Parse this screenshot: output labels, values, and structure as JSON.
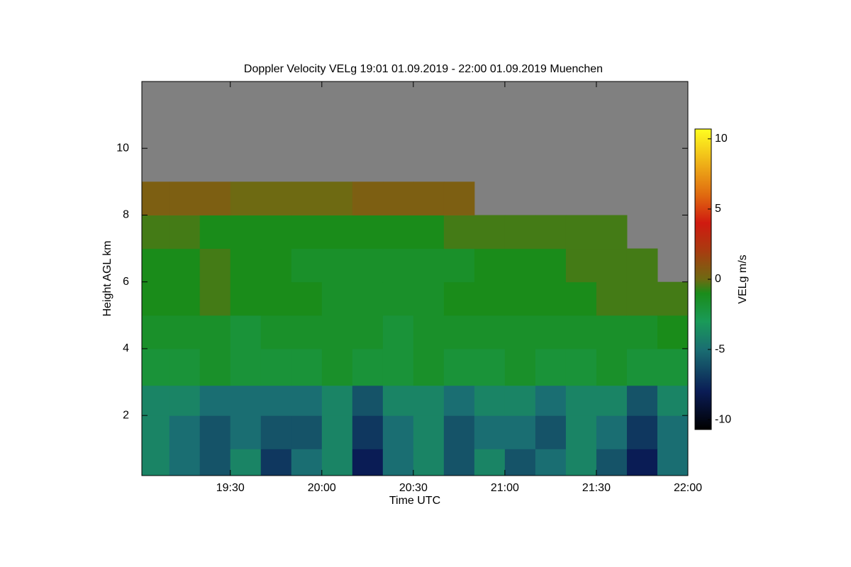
{
  "chart_data": {
    "type": "heatmap",
    "title": "Doppler Velocity VELg   19:01 01.09.2019 - 22:00 01.09.2019 Muenchen",
    "x_label": "Time UTC",
    "y_label": "Height AGL km",
    "colorbar_label": "VELg m/s",
    "x_edges": [
      1141,
      1150,
      1160,
      1170,
      1180,
      1190,
      1200,
      1210,
      1220,
      1230,
      1240,
      1250,
      1260,
      1270,
      1280,
      1290,
      1300,
      1310,
      1320
    ],
    "y_edges": [
      0.2,
      1,
      2,
      2.9,
      4,
      5,
      6,
      7,
      8,
      9,
      10,
      11,
      12
    ],
    "values": [
      [
        -4,
        -5,
        -6,
        -4,
        -7,
        -5,
        -4,
        -8,
        -5,
        -4,
        -6,
        -4,
        -6,
        -5,
        -4,
        -6,
        -8,
        -5
      ],
      [
        -4,
        -5,
        -6,
        -5,
        -6,
        -6,
        -4,
        -7,
        -5,
        -4,
        -6,
        -5,
        -5,
        -6,
        -4,
        -5,
        -7,
        -5
      ],
      [
        -4,
        -4,
        -5,
        -5,
        -5,
        -5,
        -4,
        -6,
        -4,
        -4,
        -5,
        -4,
        -4,
        -5,
        -4,
        -4,
        -6,
        -4
      ],
      [
        -2,
        -2,
        -1.5,
        -2,
        -2,
        -2,
        -1.5,
        -2,
        -2,
        -1.5,
        -2,
        -2,
        -1.5,
        -2,
        -2,
        -1.5,
        -2,
        -2
      ],
      [
        -1.5,
        -1.5,
        -1.5,
        -2,
        -1.5,
        -1.5,
        -1.5,
        -1.5,
        -2,
        -1.5,
        -1.5,
        -1.5,
        -1.5,
        -1.5,
        -1.5,
        -1.5,
        -1.5,
        -1
      ],
      [
        -1,
        -1,
        -0.5,
        -1,
        -1,
        -1,
        -1.5,
        -1.5,
        -1.5,
        -1.5,
        -1,
        -1,
        -1,
        -1,
        -1,
        -0.5,
        -0.5,
        -0.5
      ],
      [
        -1,
        -1,
        -0.5,
        -1,
        -1,
        -1.5,
        -1.5,
        -1.5,
        -1.5,
        -1.5,
        -1.5,
        -1,
        -1,
        -1,
        -0.5,
        -0.5,
        -0.5,
        null
      ],
      [
        -0.5,
        -0.5,
        -1,
        -1,
        -1,
        -1,
        -1,
        -1,
        -1,
        -1,
        -0.5,
        -0.5,
        -0.5,
        -0.5,
        -0.5,
        -0.5,
        null,
        null
      ],
      [
        0.5,
        0.5,
        0.5,
        0,
        0,
        0,
        0,
        0.5,
        0.5,
        0.5,
        0.5,
        null,
        null,
        null,
        null,
        null,
        null,
        null
      ],
      [
        null,
        null,
        null,
        null,
        null,
        null,
        null,
        null,
        null,
        null,
        null,
        null,
        null,
        null,
        null,
        null,
        null,
        null
      ],
      [
        null,
        null,
        null,
        null,
        null,
        null,
        null,
        null,
        null,
        null,
        null,
        null,
        null,
        null,
        null,
        null,
        null,
        null
      ],
      [
        null,
        null,
        null,
        null,
        null,
        null,
        null,
        null,
        null,
        null,
        null,
        null,
        null,
        null,
        null,
        null,
        null,
        null
      ]
    ],
    "missing_color": "#808080",
    "xlim": [
      1141,
      1320
    ],
    "xticks": [
      {
        "value": 1170,
        "label": "19:30"
      },
      {
        "value": 1200,
        "label": "20:00"
      },
      {
        "value": 1230,
        "label": "20:30"
      },
      {
        "value": 1260,
        "label": "21:00"
      },
      {
        "value": 1290,
        "label": "21:30"
      },
      {
        "value": 1320,
        "label": "22:00"
      }
    ],
    "ylim": [
      0.2,
      12
    ],
    "yticks": [
      2,
      4,
      6,
      8,
      10
    ],
    "zlim": [
      -10.7,
      10.7
    ],
    "zticks": [
      -10,
      -5,
      0,
      5,
      10
    ],
    "colormap": [
      {
        "value": -10.7,
        "color": "#000000"
      },
      {
        "value": -8,
        "color": "#0a1c55"
      },
      {
        "value": -5,
        "color": "#1a6e72"
      },
      {
        "value": -3,
        "color": "#1a9a58"
      },
      {
        "value": -1,
        "color": "#1a8c1a"
      },
      {
        "value": 0,
        "color": "#6e6a12"
      },
      {
        "value": 2,
        "color": "#a83c10"
      },
      {
        "value": 4,
        "color": "#d01a10"
      },
      {
        "value": 6,
        "color": "#e06a10"
      },
      {
        "value": 10.7,
        "color": "#ffff20"
      }
    ]
  }
}
